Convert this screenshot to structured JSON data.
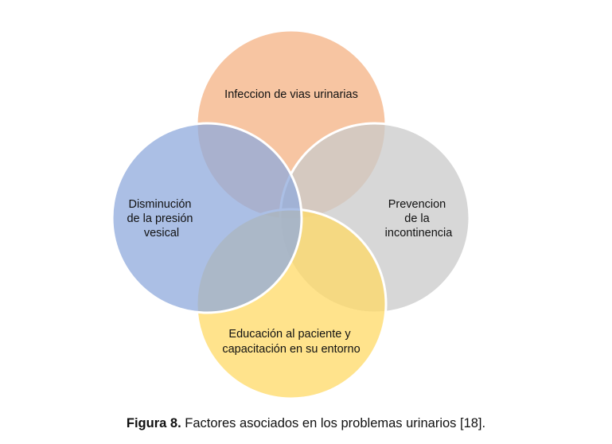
{
  "diagram": {
    "circles": [
      {
        "name": "circle-top",
        "fill": "#F4B183",
        "lines": [
          "Infeccion de vias urinarias"
        ]
      },
      {
        "name": "circle-right",
        "fill": "#C9C9C9",
        "lines": [
          "Prevencion",
          "de la",
          "incontinencia"
        ]
      },
      {
        "name": "circle-bottom",
        "fill": "#FFD966",
        "lines": [
          "Educación al paciente y",
          "capacitación en su entorno"
        ]
      },
      {
        "name": "circle-left",
        "fill": "#8FAADC",
        "lines": [
          "Disminución",
          "de la presión",
          "vesical"
        ]
      }
    ]
  },
  "caption": {
    "label": "Figura 8.",
    "text": " Factores asociados en los problemas urinarios [18]."
  }
}
